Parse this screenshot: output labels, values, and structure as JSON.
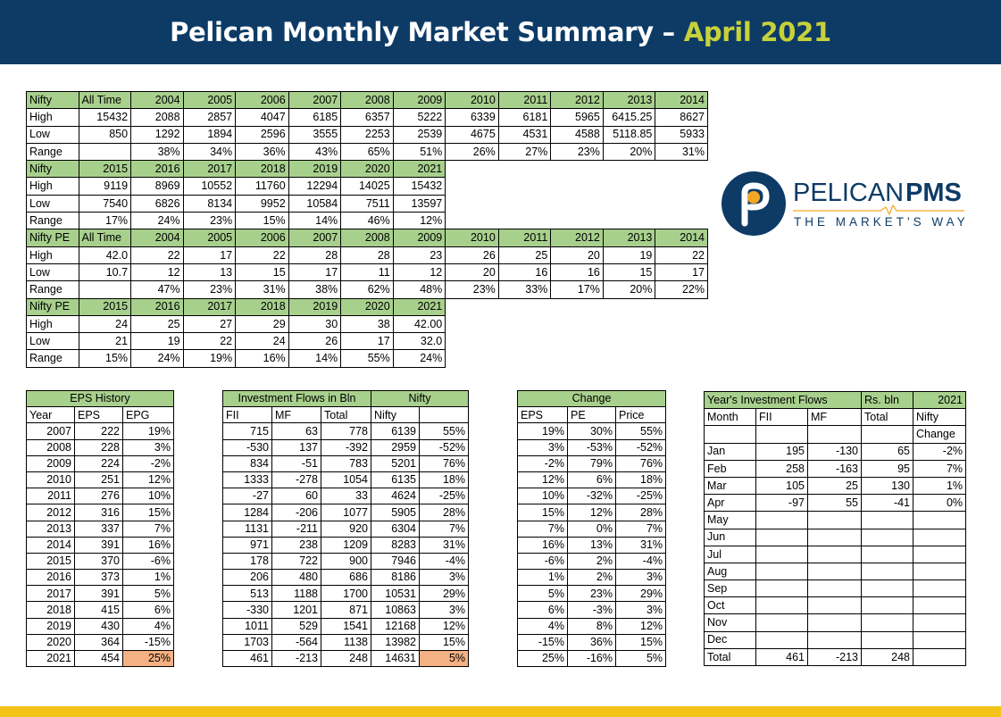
{
  "header": {
    "title": "Pelican Monthly Market Summary –",
    "title_accent": "April 2021"
  },
  "logo": {
    "brand": "PELICAN",
    "brand_bold": "PMS",
    "tagline": "THE MARKET'S WAY",
    "colors": {
      "navy": "#0d3b66",
      "orange": "#f5a623",
      "gold": "#f2c318"
    }
  },
  "nifty_table": {
    "rows": [
      [
        "Nifty",
        "All Time",
        "2004",
        "2005",
        "2006",
        "2007",
        "2008",
        "2009",
        "2010",
        "2011",
        "2012",
        "2013",
        "2014"
      ],
      [
        "High",
        "15432",
        "2088",
        "2857",
        "4047",
        "6185",
        "6357",
        "5222",
        "6339",
        "6181",
        "5965",
        "6415.25",
        "8627"
      ],
      [
        "Low",
        "850",
        "1292",
        "1894",
        "2596",
        "3555",
        "2253",
        "2539",
        "4675",
        "4531",
        "4588",
        "5118.85",
        "5933"
      ],
      [
        "Range",
        "",
        "38%",
        "34%",
        "36%",
        "43%",
        "65%",
        "51%",
        "26%",
        "27%",
        "23%",
        "20%",
        "31%"
      ],
      [
        "Nifty",
        "2015",
        "2016",
        "2017",
        "2018",
        "2019",
        "2020",
        "2021"
      ],
      [
        "High",
        "9119",
        "8969",
        "10552",
        "11760",
        "12294",
        "14025",
        "15432"
      ],
      [
        "Low",
        "7540",
        "6826",
        "8134",
        "9952",
        "10584",
        "7511",
        "13597"
      ],
      [
        "Range",
        "17%",
        "24%",
        "23%",
        "15%",
        "14%",
        "46%",
        "12%"
      ],
      [
        "Nifty PE",
        "All Time",
        "2004",
        "2005",
        "2006",
        "2007",
        "2008",
        "2009",
        "2010",
        "2011",
        "2012",
        "2013",
        "2014"
      ],
      [
        "High",
        "42.0",
        "22",
        "17",
        "22",
        "28",
        "28",
        "23",
        "26",
        "25",
        "20",
        "19",
        "22"
      ],
      [
        "Low",
        "10.7",
        "12",
        "13",
        "15",
        "17",
        "11",
        "12",
        "20",
        "16",
        "16",
        "15",
        "17"
      ],
      [
        "Range",
        "",
        "47%",
        "23%",
        "31%",
        "38%",
        "62%",
        "48%",
        "23%",
        "33%",
        "17%",
        "20%",
        "22%"
      ],
      [
        "Nifty PE",
        "2015",
        "2016",
        "2017",
        "2018",
        "2019",
        "2020",
        "2021"
      ],
      [
        "High",
        "24",
        "25",
        "27",
        "29",
        "30",
        "38",
        "42.00"
      ],
      [
        "Low",
        "21",
        "19",
        "22",
        "24",
        "26",
        "17",
        "32.0"
      ],
      [
        "Range",
        "15%",
        "24%",
        "19%",
        "16%",
        "14%",
        "55%",
        "24%"
      ]
    ]
  },
  "eps_history": {
    "title": "EPS History",
    "columns": [
      "Year",
      "EPS",
      "EPG"
    ],
    "rows": [
      [
        "2007",
        "222",
        "19%"
      ],
      [
        "2008",
        "228",
        "3%"
      ],
      [
        "2009",
        "224",
        "-2%"
      ],
      [
        "2010",
        "251",
        "12%"
      ],
      [
        "2011",
        "276",
        "10%"
      ],
      [
        "2012",
        "316",
        "15%"
      ],
      [
        "2013",
        "337",
        "7%"
      ],
      [
        "2014",
        "391",
        "16%"
      ],
      [
        "2015",
        "370",
        "-6%"
      ],
      [
        "2016",
        "373",
        "1%"
      ],
      [
        "2017",
        "391",
        "5%"
      ],
      [
        "2018",
        "415",
        "6%"
      ],
      [
        "2019",
        "430",
        "4%"
      ],
      [
        "2020",
        "364",
        "-15%"
      ],
      [
        "2021",
        "454",
        "25%"
      ]
    ]
  },
  "investment_flows": {
    "title": "Investment Flows in Bln",
    "nifty_title": "Nifty",
    "columns": [
      "FII",
      "MF",
      "Total",
      "Nifty",
      ""
    ],
    "rows": [
      [
        "715",
        "63",
        "778",
        "6139",
        "55%"
      ],
      [
        "-530",
        "137",
        "-392",
        "2959",
        "-52%"
      ],
      [
        "834",
        "-51",
        "783",
        "5201",
        "76%"
      ],
      [
        "1333",
        "-278",
        "1054",
        "6135",
        "18%"
      ],
      [
        "-27",
        "60",
        "33",
        "4624",
        "-25%"
      ],
      [
        "1284",
        "-206",
        "1077",
        "5905",
        "28%"
      ],
      [
        "1131",
        "-211",
        "920",
        "6304",
        "7%"
      ],
      [
        "971",
        "238",
        "1209",
        "8283",
        "31%"
      ],
      [
        "178",
        "722",
        "900",
        "7946",
        "-4%"
      ],
      [
        "206",
        "480",
        "686",
        "8186",
        "3%"
      ],
      [
        "513",
        "1188",
        "1700",
        "10531",
        "29%"
      ],
      [
        "-330",
        "1201",
        "871",
        "10863",
        "3%"
      ],
      [
        "1011",
        "529",
        "1541",
        "12168",
        "12%"
      ],
      [
        "1703",
        "-564",
        "1138",
        "13982",
        "15%"
      ],
      [
        "461",
        "-213",
        "248",
        "14631",
        "5%"
      ]
    ]
  },
  "change": {
    "title": "Change",
    "columns": [
      "EPS",
      "PE",
      "Price"
    ],
    "rows": [
      [
        "19%",
        "30%",
        "55%"
      ],
      [
        "3%",
        "-53%",
        "-52%"
      ],
      [
        "-2%",
        "79%",
        "76%"
      ],
      [
        "12%",
        "6%",
        "18%"
      ],
      [
        "10%",
        "-32%",
        "-25%"
      ],
      [
        "15%",
        "12%",
        "28%"
      ],
      [
        "7%",
        "0%",
        "7%"
      ],
      [
        "16%",
        "13%",
        "31%"
      ],
      [
        "-6%",
        "2%",
        "-4%"
      ],
      [
        "1%",
        "2%",
        "3%"
      ],
      [
        "5%",
        "23%",
        "29%"
      ],
      [
        "6%",
        "-3%",
        "3%"
      ],
      [
        "4%",
        "8%",
        "12%"
      ],
      [
        "-15%",
        "36%",
        "15%"
      ],
      [
        "25%",
        "-16%",
        "5%"
      ]
    ]
  },
  "year_flows": {
    "title": "Year's Investment Flows",
    "unit": "Rs. bln",
    "year": "2021",
    "columns": [
      "Month",
      "FII",
      "MF",
      "Total",
      "Nifty"
    ],
    "sub_header": "Change",
    "rows": [
      [
        "Jan",
        "195",
        "-130",
        "65",
        "-2%"
      ],
      [
        "Feb",
        "258",
        "-163",
        "95",
        "7%"
      ],
      [
        "Mar",
        "105",
        "25",
        "130",
        "1%"
      ],
      [
        "Apr",
        "-97",
        "55",
        "-41",
        "0%"
      ],
      [
        "May",
        "",
        "",
        "",
        ""
      ],
      [
        "Jun",
        "",
        "",
        "",
        ""
      ],
      [
        "Jul",
        "",
        "",
        "",
        ""
      ],
      [
        "Aug",
        "",
        "",
        "",
        ""
      ],
      [
        "Sep",
        "",
        "",
        "",
        ""
      ],
      [
        "Oct",
        "",
        "",
        "",
        ""
      ],
      [
        "Nov",
        "",
        "",
        "",
        ""
      ],
      [
        "Dec",
        "",
        "",
        "",
        ""
      ],
      [
        "Total",
        "461",
        "-213",
        "248",
        ""
      ]
    ]
  }
}
